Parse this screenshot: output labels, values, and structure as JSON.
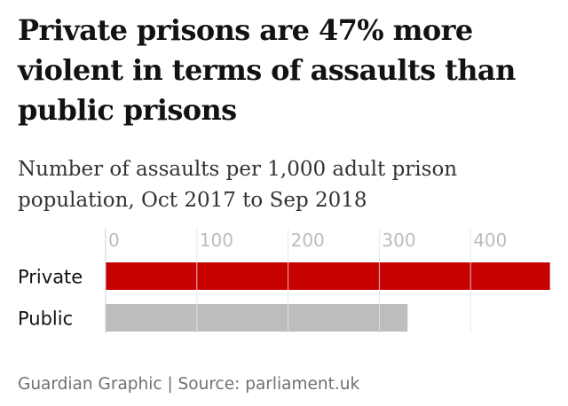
{
  "title": "Private prisons are 47% more violent in terms of assaults than public prisons",
  "subtitle": "Number of assaults per 1,000 adult prison population, Oct 2017 to Sep 2018",
  "source": "Guardian Graphic | Source: parliament.uk",
  "chart_data": {
    "type": "bar",
    "orientation": "horizontal",
    "title": "Private prisons are 47% more violent in terms of assaults than public prisons",
    "subtitle": "Number of assaults per 1,000 adult prison population, Oct 2017 to Sep 2018",
    "categories": [
      "Private",
      "Public"
    ],
    "values": [
      487,
      331
    ],
    "colors": [
      "#c70000",
      "#bdbdbd"
    ],
    "xlim": [
      0,
      487
    ],
    "xticks": [
      0,
      100,
      200,
      300,
      400
    ],
    "tick_labels": [
      "0",
      "100",
      "200",
      "300",
      "400"
    ],
    "xlabel": "",
    "ylabel": "",
    "grid": true,
    "axis_position": "top"
  }
}
